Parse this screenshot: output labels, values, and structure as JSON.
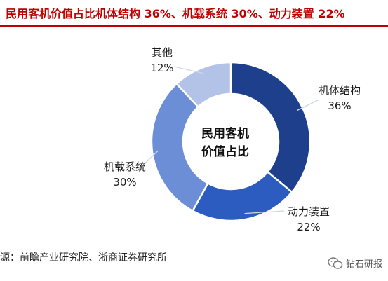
{
  "title": "民用客机价值占比机体结构 36%、机载系统 30%、动力装置 22%",
  "source": "源：前瞻产业研究院、浙商证券研究所",
  "watermark": "钻石研报",
  "watermark_icon": "wechat-icon",
  "chart_data": {
    "type": "pie",
    "donut": true,
    "center_label": [
      "民用客机",
      "价值占比"
    ],
    "slices": [
      {
        "label": "机体结构",
        "value": 36,
        "value_label": "36%",
        "color": "#1e3f8c"
      },
      {
        "label": "动力装置",
        "value": 22,
        "value_label": "22%",
        "color": "#2c5cbf"
      },
      {
        "label": "机载系统",
        "value": 30,
        "value_label": "30%",
        "color": "#6b8ed6"
      },
      {
        "label": "其他",
        "value": 12,
        "value_label": "12%",
        "color": "#b3c3e8"
      }
    ],
    "legend": "none"
  }
}
